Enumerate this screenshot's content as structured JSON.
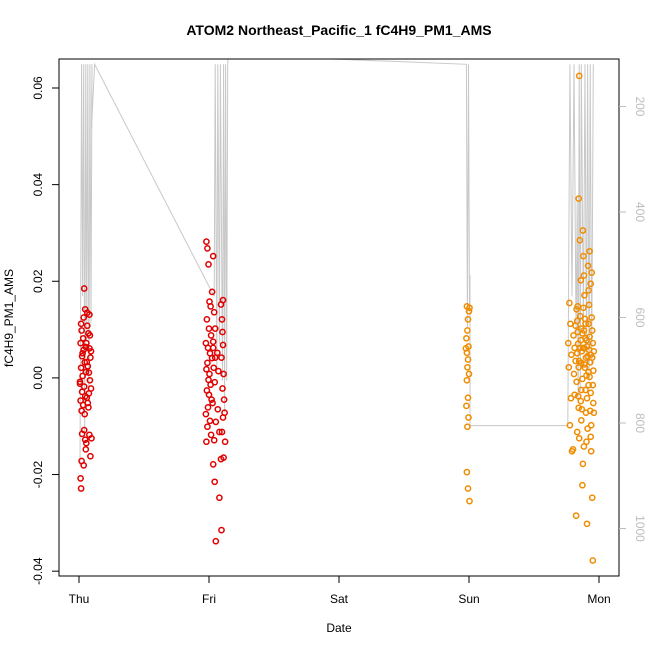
{
  "chart_data": {
    "type": "scatter",
    "title": "ATOM2 Northeast_Pacific_1 fC4H9_PM1_AMS",
    "xlabel": "Date",
    "ylabel": "fC4H9_PM1_AMS",
    "x_ticks": [
      "Thu",
      "Fri",
      "Sat",
      "Sun",
      "Mon"
    ],
    "y_ticks": [
      "-0.04",
      "-0.02",
      "0.00",
      "0.02",
      "0.04",
      "0.06"
    ],
    "y_tick_values": [
      -0.04,
      -0.02,
      0.0,
      0.02,
      0.04,
      0.06
    ],
    "ylim": [
      -0.041,
      0.066
    ],
    "y2_ticks": [
      "200",
      "400",
      "600",
      "800",
      "1000"
    ],
    "y2_tick_values": [
      200,
      400,
      600,
      800,
      1000
    ],
    "y2lim": [
      110,
      1090
    ],
    "grid": false,
    "colors": {
      "early": "#e00000",
      "late": "#f08c00",
      "altitude": "#c8c8c8"
    },
    "series": [
      {
        "color": "#e00000",
        "points": [
          [
            0.01,
            0.0185
          ],
          [
            0.012,
            0.0142
          ],
          [
            0.005,
            0.0098
          ],
          [
            0.008,
            0.0082
          ],
          [
            0.003,
            0.0072
          ],
          [
            0.009,
            0.0058
          ],
          [
            0.006,
            0.0045
          ],
          [
            0.011,
            0.0032
          ],
          [
            0.004,
            0.0021
          ],
          [
            0.013,
            0.0012
          ],
          [
            0.007,
            0.0004
          ],
          [
            0.002,
            -0.0008
          ],
          [
            0.01,
            -0.0018
          ],
          [
            0.006,
            -0.0029
          ],
          [
            0.012,
            -0.0038
          ],
          [
            0.003,
            -0.0047
          ],
          [
            0.008,
            -0.0056
          ],
          [
            0.005,
            -0.0068
          ],
          [
            0.011,
            -0.0075
          ],
          [
            0.009,
            0.0125
          ],
          [
            0.004,
            0.0112
          ],
          [
            0.013,
            0.0064
          ],
          [
            0.007,
            0.0051
          ],
          [
            0.002,
            -0.0012
          ],
          [
            0.01,
            -0.0108
          ],
          [
            0.006,
            -0.0116
          ],
          [
            0.012,
            -0.0128
          ],
          [
            0.005,
            -0.0172
          ],
          [
            0.009,
            -0.0181
          ],
          [
            0.003,
            -0.0208
          ],
          [
            0.004,
            -0.0229
          ],
          [
            0.016,
            0.0135
          ],
          [
            0.018,
            0.0092
          ],
          [
            0.02,
            0.0061
          ],
          [
            0.022,
            0.0042
          ],
          [
            0.017,
            0.0024
          ],
          [
            0.019,
            0.0011
          ],
          [
            0.021,
            -0.0005
          ],
          [
            0.023,
            -0.0022
          ],
          [
            0.015,
            -0.0041
          ],
          [
            0.018,
            -0.0061
          ],
          [
            0.02,
            -0.0118
          ],
          [
            0.014,
            -0.0135
          ],
          [
            0.022,
            -0.0162
          ],
          [
            0.016,
            0.0108
          ],
          [
            0.021,
            0.0088
          ],
          [
            0.019,
            -0.0032
          ],
          [
            0.017,
            -0.0052
          ],
          [
            0.014,
            0.0072
          ],
          [
            0.023,
            0.0055
          ],
          [
            0.015,
            0.0033
          ],
          [
            0.013,
            -0.0148
          ],
          [
            0.024,
            -0.0125
          ],
          [
            0.02,
            0.0131
          ],
          [
            0.245,
            0.0282
          ],
          [
            0.247,
            0.0268
          ],
          [
            0.249,
            0.0235
          ],
          [
            0.251,
            0.0158
          ],
          [
            0.253,
            0.0148
          ],
          [
            0.246,
            0.0121
          ],
          [
            0.25,
            0.0102
          ],
          [
            0.254,
            0.0088
          ],
          [
            0.244,
            0.0072
          ],
          [
            0.248,
            0.0062
          ],
          [
            0.252,
            0.0051
          ],
          [
            0.256,
            0.0041
          ],
          [
            0.247,
            0.0031
          ],
          [
            0.245,
            0.0018
          ],
          [
            0.251,
            0.0008
          ],
          [
            0.249,
            -0.0004
          ],
          [
            0.253,
            -0.0014
          ],
          [
            0.246,
            -0.0026
          ],
          [
            0.25,
            -0.0035
          ],
          [
            0.255,
            -0.0045
          ],
          [
            0.248,
            -0.0061
          ],
          [
            0.244,
            -0.0075
          ],
          [
            0.252,
            -0.0089
          ],
          [
            0.247,
            -0.0101
          ],
          [
            0.254,
            -0.0118
          ],
          [
            0.245,
            -0.0132
          ],
          [
            0.258,
            0.0252
          ],
          [
            0.26,
            0.0136
          ],
          [
            0.258,
            0.0075
          ],
          [
            0.262,
            0.0042
          ],
          [
            0.259,
            0.0021
          ],
          [
            0.261,
            -0.0009
          ],
          [
            0.257,
            -0.0052
          ],
          [
            0.263,
            -0.0091
          ],
          [
            0.26,
            -0.0129
          ],
          [
            0.258,
            -0.0179
          ],
          [
            0.261,
            -0.0215
          ],
          [
            0.263,
            -0.0338
          ],
          [
            0.266,
            0.0052
          ],
          [
            0.268,
            0.0014
          ],
          [
            0.267,
            -0.0065
          ],
          [
            0.27,
            -0.0112
          ],
          [
            0.27,
            -0.0248
          ],
          [
            0.273,
            0.0152
          ],
          [
            0.275,
            0.0121
          ],
          [
            0.276,
            0.0095
          ],
          [
            0.277,
            0.0068
          ],
          [
            0.274,
            0.0042
          ],
          [
            0.278,
            0.0008
          ],
          [
            0.276,
            -0.0022
          ],
          [
            0.279,
            -0.0045
          ],
          [
            0.277,
            -0.0082
          ],
          [
            0.275,
            -0.0112
          ],
          [
            0.278,
            -0.0165
          ],
          [
            0.274,
            -0.0315
          ],
          [
            0.277,
            0.0161
          ],
          [
            0.281,
            -0.0132
          ],
          [
            0.28,
            -0.0072
          ],
          [
            0.273,
            -0.0168
          ],
          [
            0.256,
            0.0178
          ],
          [
            0.262,
            0.0102
          ],
          [
            0.258,
            0.0062
          ]
        ]
      },
      {
        "color": "#f08c00",
        "points": [
          [
            0.746,
            0.0148
          ],
          [
            0.748,
            0.0121
          ],
          [
            0.747,
            0.0098
          ],
          [
            0.745,
            0.0082
          ],
          [
            0.749,
            0.0065
          ],
          [
            0.746,
            0.0052
          ],
          [
            0.748,
            0.0038
          ],
          [
            0.747,
            0.0022
          ],
          [
            0.746,
            -0.0005
          ],
          [
            0.748,
            -0.0041
          ],
          [
            0.745,
            -0.0058
          ],
          [
            0.749,
            -0.0082
          ],
          [
            0.747,
            -0.0101
          ],
          [
            0.746,
            -0.0195
          ],
          [
            0.748,
            -0.0229
          ],
          [
            0.751,
            -0.0255
          ],
          [
            0.751,
            0.0145
          ],
          [
            0.75,
            0.0138
          ],
          [
            0.744,
            0.0061
          ],
          [
            0.75,
            0.0008
          ],
          [
            0.943,
            0.0155
          ],
          [
            0.945,
            0.0112
          ],
          [
            0.941,
            0.0072
          ],
          [
            0.947,
            0.0048
          ],
          [
            0.942,
            0.0022
          ],
          [
            0.946,
            -0.0042
          ],
          [
            0.944,
            -0.0098
          ],
          [
            0.948,
            -0.0152
          ],
          [
            0.951,
            0.0088
          ],
          [
            0.953,
            0.0062
          ],
          [
            0.955,
            0.0035
          ],
          [
            0.952,
            0.0008
          ],
          [
            0.95,
            -0.0148
          ],
          [
            0.956,
            -0.0285
          ],
          [
            0.957,
            0.0142
          ],
          [
            0.958,
            0.0118
          ],
          [
            0.959,
            0.0095
          ],
          [
            0.96,
            0.0071
          ],
          [
            0.958,
            0.0051
          ],
          [
            0.961,
            0.0022
          ],
          [
            0.957,
            -0.0008
          ],
          [
            0.96,
            -0.0038
          ],
          [
            0.958,
            -0.0112
          ],
          [
            0.962,
            -0.0125
          ],
          [
            0.961,
            0.0371
          ],
          [
            0.963,
            0.0285
          ],
          [
            0.962,
            0.0625
          ],
          [
            0.965,
            0.0202
          ],
          [
            0.964,
            0.0128
          ],
          [
            0.966,
            0.0102
          ],
          [
            0.965,
            0.0078
          ],
          [
            0.967,
            0.0055
          ],
          [
            0.966,
            0.0031
          ],
          [
            0.968,
            -0.0002
          ],
          [
            0.965,
            -0.0048
          ],
          [
            0.967,
            -0.0065
          ],
          [
            0.966,
            -0.0088
          ],
          [
            0.969,
            -0.0178
          ],
          [
            0.968,
            -0.0222
          ],
          [
            0.969,
            0.0305
          ],
          [
            0.97,
            0.0252
          ],
          [
            0.971,
            0.0212
          ],
          [
            0.972,
            0.0171
          ],
          [
            0.97,
            0.0145
          ],
          [
            0.973,
            0.0122
          ],
          [
            0.971,
            0.0098
          ],
          [
            0.974,
            0.0082
          ],
          [
            0.972,
            0.0061
          ],
          [
            0.975,
            0.0042
          ],
          [
            0.973,
            0.0021
          ],
          [
            0.976,
            0.0005
          ],
          [
            0.974,
            -0.0025
          ],
          [
            0.977,
            -0.0042
          ],
          [
            0.975,
            -0.0072
          ],
          [
            0.978,
            -0.0105
          ],
          [
            0.976,
            -0.0132
          ],
          [
            0.977,
            -0.0302
          ],
          [
            0.979,
            0.0232
          ],
          [
            0.98,
            0.0181
          ],
          [
            0.981,
            0.0151
          ],
          [
            0.98,
            0.0112
          ],
          [
            0.982,
            0.0085
          ],
          [
            0.981,
            0.0058
          ],
          [
            0.983,
            0.0032
          ],
          [
            0.982,
            0.0002
          ],
          [
            0.984,
            -0.0031
          ],
          [
            0.983,
            -0.0068
          ],
          [
            0.985,
            -0.0098
          ],
          [
            0.984,
            -0.0122
          ],
          [
            0.985,
            -0.0152
          ],
          [
            0.986,
            0.0125
          ],
          [
            0.988,
            0.0072
          ],
          [
            0.987,
            0.0042
          ],
          [
            0.989,
            0.0015
          ],
          [
            0.988,
            -0.0015
          ],
          [
            0.99,
            -0.0072
          ],
          [
            0.987,
            -0.0248
          ],
          [
            0.988,
            -0.0378
          ],
          [
            0.986,
            0.0218
          ],
          [
            0.982,
            0.0262
          ],
          [
            0.978,
            0.0045
          ],
          [
            0.974,
            0.0112
          ],
          [
            0.97,
            0.0062
          ],
          [
            0.966,
            -0.0025
          ],
          [
            0.962,
            0.0035
          ],
          [
            0.959,
            0.0148
          ],
          [
            0.955,
            0.0108
          ],
          [
            0.953,
            -0.0035
          ],
          [
            0.984,
            0.0195
          ],
          [
            0.987,
            0.0098
          ],
          [
            0.99,
            0.0055
          ],
          [
            0.972,
            0.0028
          ],
          [
            0.976,
            0.0078
          ],
          [
            0.98,
            0.0012
          ],
          [
            0.984,
            0.0048
          ],
          [
            0.964,
            0.0062
          ],
          [
            0.968,
            0.0092
          ],
          [
            0.961,
            -0.0062
          ],
          [
            0.989,
            -0.0052
          ],
          [
            0.971,
            -0.0142
          ],
          [
            0.977,
            0.0065
          ],
          [
            0.98,
            -0.0015
          ]
        ]
      }
    ],
    "altitude_path": [
      [
        0.002,
        880
      ],
      [
        0.005,
        120
      ],
      [
        0.007,
        560
      ],
      [
        0.009,
        120
      ],
      [
        0.011,
        820
      ],
      [
        0.013,
        120
      ],
      [
        0.015,
        640
      ],
      [
        0.017,
        120
      ],
      [
        0.019,
        760
      ],
      [
        0.021,
        120
      ],
      [
        0.023,
        610
      ],
      [
        0.025,
        120
      ],
      [
        0.024,
        240
      ],
      [
        0.03,
        120
      ],
      [
        0.26,
        560
      ],
      [
        0.262,
        120
      ],
      [
        0.265,
        700
      ],
      [
        0.267,
        120
      ],
      [
        0.27,
        650
      ],
      [
        0.272,
        120
      ],
      [
        0.276,
        720
      ],
      [
        0.278,
        120
      ],
      [
        0.28,
        780
      ],
      [
        0.282,
        120
      ],
      [
        0.284,
        720
      ],
      [
        0.286,
        120
      ],
      [
        0.288,
        90
      ],
      [
        0.36,
        105
      ],
      [
        0.745,
        120
      ],
      [
        0.747,
        620
      ],
      [
        0.749,
        120
      ],
      [
        0.751,
        580
      ],
      [
        0.752,
        520
      ],
      [
        0.752,
        805
      ],
      [
        0.94,
        805
      ],
      [
        0.944,
        120
      ],
      [
        0.948,
        560
      ],
      [
        0.952,
        120
      ],
      [
        0.956,
        640
      ],
      [
        0.958,
        380
      ],
      [
        0.96,
        760
      ],
      [
        0.962,
        120
      ],
      [
        0.964,
        740
      ],
      [
        0.966,
        120
      ],
      [
        0.97,
        620
      ],
      [
        0.973,
        120
      ],
      [
        0.976,
        700
      ],
      [
        0.978,
        120
      ],
      [
        0.981,
        720
      ],
      [
        0.983,
        120
      ],
      [
        0.986,
        690
      ],
      [
        0.989,
        120
      ]
    ]
  }
}
